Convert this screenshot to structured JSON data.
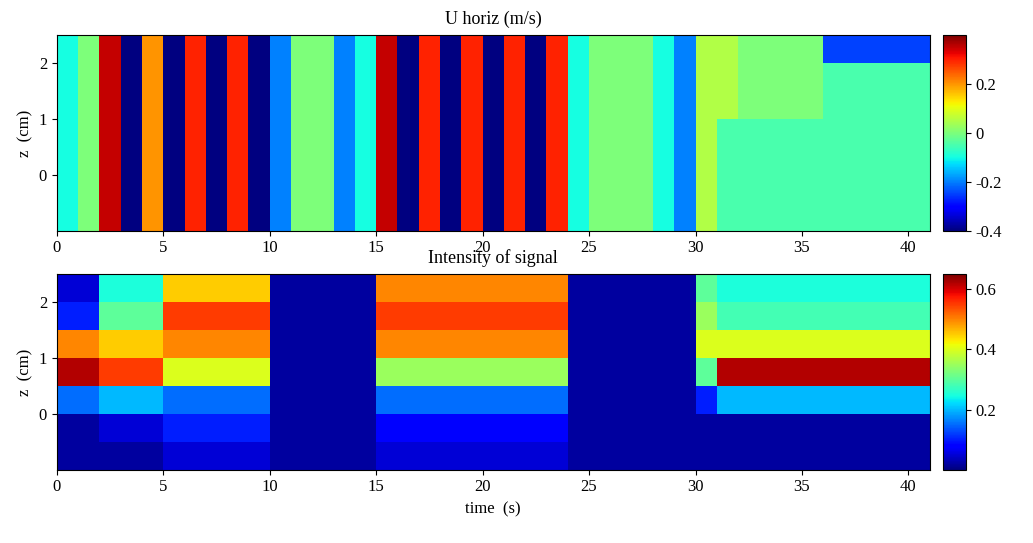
{
  "chart_data": [
    {
      "type": "heatmap",
      "title": "U horiz (m/s)",
      "ylabel": "z  (cm)",
      "xlim": [
        0,
        41
      ],
      "ylim": [
        -1,
        2.5
      ],
      "xticks": [
        0,
        5,
        10,
        15,
        20,
        25,
        30,
        35,
        40
      ],
      "yticks": [
        0,
        1,
        2
      ],
      "x_edges": [
        0,
        1,
        2,
        3,
        4,
        5,
        6,
        7,
        8,
        9,
        10,
        11,
        12,
        13,
        14,
        15,
        16,
        17,
        18,
        19,
        20,
        21,
        22,
        23,
        24,
        25,
        26,
        27,
        28,
        29,
        30,
        31,
        32,
        33,
        34,
        35,
        36,
        37,
        38,
        39,
        40,
        41
      ],
      "y_edges": [
        -1,
        -0.5,
        0,
        0.5,
        1,
        1.5,
        2,
        2.5
      ],
      "cells": [
        [
          -0.1,
          0.0,
          0.35,
          -0.4,
          0.2,
          -0.4,
          0.3,
          -0.4,
          0.3,
          -0.4,
          -0.2,
          0.0,
          0.0,
          -0.2,
          -0.1,
          0.35,
          -0.4,
          0.3,
          -0.4,
          0.3,
          -0.4,
          0.3,
          -0.4,
          0.3,
          -0.1,
          0.0,
          0.0,
          0.0,
          -0.1,
          -0.2,
          0.05,
          -0.05,
          -0.05,
          -0.05,
          -0.05,
          -0.05,
          -0.05,
          -0.05,
          -0.05,
          -0.05,
          -0.05
        ],
        [
          -0.1,
          0.0,
          0.35,
          -0.4,
          0.2,
          -0.4,
          0.3,
          -0.4,
          0.3,
          -0.4,
          -0.2,
          0.0,
          0.0,
          -0.2,
          -0.1,
          0.35,
          -0.4,
          0.3,
          -0.4,
          0.3,
          -0.4,
          0.3,
          -0.4,
          0.3,
          -0.1,
          0.0,
          0.0,
          0.0,
          -0.1,
          -0.2,
          0.05,
          -0.05,
          -0.05,
          -0.05,
          -0.05,
          -0.05,
          -0.05,
          -0.05,
          -0.05,
          -0.05,
          -0.05
        ],
        [
          -0.1,
          0.0,
          0.35,
          -0.4,
          0.2,
          -0.4,
          0.3,
          -0.4,
          0.3,
          -0.4,
          -0.2,
          0.0,
          0.0,
          -0.2,
          -0.1,
          0.35,
          -0.4,
          0.3,
          -0.4,
          0.3,
          -0.4,
          0.3,
          -0.4,
          0.3,
          -0.1,
          0.0,
          0.0,
          0.0,
          -0.1,
          -0.2,
          0.05,
          -0.05,
          -0.05,
          -0.05,
          -0.05,
          -0.05,
          -0.05,
          -0.05,
          -0.05,
          -0.05,
          -0.05
        ],
        [
          -0.1,
          0.0,
          0.35,
          -0.4,
          0.2,
          -0.4,
          0.3,
          -0.4,
          0.3,
          -0.4,
          -0.2,
          0.0,
          0.0,
          -0.2,
          -0.1,
          0.35,
          -0.4,
          0.3,
          -0.4,
          0.3,
          -0.4,
          0.3,
          -0.4,
          0.3,
          -0.1,
          0.0,
          0.0,
          0.0,
          -0.1,
          -0.2,
          0.05,
          -0.05,
          -0.05,
          -0.05,
          -0.05,
          -0.05,
          -0.05,
          -0.05,
          -0.05,
          -0.05,
          -0.05
        ],
        [
          -0.1,
          0.0,
          0.35,
          -0.4,
          0.2,
          -0.4,
          0.3,
          -0.4,
          0.3,
          -0.4,
          -0.2,
          0.0,
          0.0,
          -0.2,
          -0.1,
          0.35,
          -0.4,
          0.3,
          -0.4,
          0.3,
          -0.4,
          0.3,
          -0.4,
          0.3,
          -0.1,
          0.0,
          0.0,
          0.0,
          -0.1,
          -0.2,
          0.05,
          0.05,
          0.0,
          0.0,
          0.0,
          0.0,
          -0.05,
          -0.05,
          -0.05,
          -0.05,
          -0.05
        ],
        [
          -0.1,
          0.0,
          0.35,
          -0.4,
          0.2,
          -0.4,
          0.3,
          -0.4,
          0.3,
          -0.4,
          -0.2,
          0.0,
          0.0,
          -0.2,
          -0.1,
          0.35,
          -0.4,
          0.3,
          -0.4,
          0.3,
          -0.4,
          0.3,
          -0.4,
          0.3,
          -0.1,
          0.0,
          0.0,
          0.0,
          -0.1,
          -0.2,
          0.05,
          0.05,
          0.0,
          0.0,
          0.0,
          0.0,
          -0.05,
          -0.05,
          -0.05,
          -0.05,
          -0.05
        ],
        [
          -0.1,
          0.0,
          0.35,
          -0.4,
          0.2,
          -0.4,
          0.3,
          -0.4,
          0.3,
          -0.4,
          -0.2,
          0.0,
          0.0,
          -0.2,
          -0.1,
          0.35,
          -0.4,
          0.3,
          -0.4,
          0.3,
          -0.4,
          0.3,
          -0.4,
          0.3,
          -0.1,
          0.0,
          0.0,
          0.0,
          -0.1,
          -0.2,
          0.05,
          0.05,
          0.0,
          0.0,
          0.0,
          0.0,
          -0.25,
          -0.25,
          -0.25,
          -0.25,
          -0.25
        ]
      ],
      "colorbar_range": [
        -0.4,
        0.4
      ],
      "colorbar_ticks": [
        -0.4,
        -0.2,
        0,
        0.2
      ]
    },
    {
      "type": "heatmap",
      "title": "Intensity of signal",
      "xlabel": "time  (s)",
      "ylabel": "z  (cm)",
      "xlim": [
        0,
        41
      ],
      "ylim": [
        -1,
        2.5
      ],
      "xticks": [
        0,
        5,
        10,
        15,
        20,
        25,
        30,
        35,
        40
      ],
      "yticks": [
        0,
        1,
        2
      ],
      "x_edges": [
        0,
        1,
        2,
        3,
        4,
        5,
        6,
        7,
        8,
        9,
        10,
        11,
        12,
        13,
        14,
        15,
        16,
        17,
        18,
        19,
        20,
        21,
        22,
        23,
        24,
        25,
        26,
        27,
        28,
        29,
        30,
        31,
        32,
        33,
        34,
        35,
        36,
        37,
        38,
        39,
        40,
        41
      ],
      "y_edges": [
        -1,
        -0.5,
        0,
        0.5,
        1,
        1.5,
        2,
        2.5
      ],
      "cells": [
        [
          0.02,
          0.02,
          0.02,
          0.02,
          0.02,
          0.05,
          0.05,
          0.05,
          0.05,
          0.05,
          0.02,
          0.02,
          0.02,
          0.02,
          0.02,
          0.05,
          0.05,
          0.05,
          0.05,
          0.05,
          0.05,
          0.05,
          0.05,
          0.05,
          0.02,
          0.02,
          0.02,
          0.02,
          0.02,
          0.02,
          0.02,
          0.02,
          0.02,
          0.02,
          0.02,
          0.02,
          0.02,
          0.02,
          0.02,
          0.02,
          0.02
        ],
        [
          0.02,
          0.02,
          0.05,
          0.05,
          0.05,
          0.1,
          0.1,
          0.1,
          0.1,
          0.1,
          0.02,
          0.02,
          0.02,
          0.02,
          0.02,
          0.08,
          0.08,
          0.08,
          0.08,
          0.08,
          0.08,
          0.08,
          0.08,
          0.08,
          0.02,
          0.02,
          0.02,
          0.02,
          0.02,
          0.02,
          0.02,
          0.02,
          0.02,
          0.02,
          0.02,
          0.02,
          0.02,
          0.02,
          0.02,
          0.02,
          0.02
        ],
        [
          0.15,
          0.15,
          0.2,
          0.2,
          0.2,
          0.15,
          0.15,
          0.15,
          0.15,
          0.15,
          0.02,
          0.02,
          0.02,
          0.02,
          0.02,
          0.15,
          0.15,
          0.15,
          0.15,
          0.15,
          0.15,
          0.15,
          0.15,
          0.15,
          0.02,
          0.02,
          0.02,
          0.02,
          0.02,
          0.02,
          0.1,
          0.2,
          0.2,
          0.2,
          0.2,
          0.2,
          0.2,
          0.2,
          0.2,
          0.2,
          0.2
        ],
        [
          0.62,
          0.62,
          0.55,
          0.55,
          0.55,
          0.4,
          0.4,
          0.4,
          0.4,
          0.4,
          0.02,
          0.02,
          0.02,
          0.02,
          0.02,
          0.35,
          0.35,
          0.35,
          0.35,
          0.35,
          0.35,
          0.35,
          0.35,
          0.35,
          0.02,
          0.02,
          0.02,
          0.02,
          0.02,
          0.02,
          0.3,
          0.62,
          0.62,
          0.62,
          0.62,
          0.62,
          0.62,
          0.62,
          0.62,
          0.62,
          0.62
        ],
        [
          0.5,
          0.5,
          0.45,
          0.45,
          0.45,
          0.5,
          0.5,
          0.5,
          0.5,
          0.5,
          0.02,
          0.02,
          0.02,
          0.02,
          0.02,
          0.5,
          0.5,
          0.5,
          0.5,
          0.5,
          0.5,
          0.5,
          0.5,
          0.5,
          0.02,
          0.02,
          0.02,
          0.02,
          0.02,
          0.02,
          0.4,
          0.4,
          0.4,
          0.4,
          0.4,
          0.4,
          0.4,
          0.4,
          0.4,
          0.4,
          0.4
        ],
        [
          0.1,
          0.1,
          0.3,
          0.3,
          0.3,
          0.55,
          0.55,
          0.55,
          0.55,
          0.55,
          0.02,
          0.02,
          0.02,
          0.02,
          0.02,
          0.55,
          0.55,
          0.55,
          0.55,
          0.55,
          0.55,
          0.55,
          0.55,
          0.55,
          0.02,
          0.02,
          0.02,
          0.02,
          0.02,
          0.02,
          0.35,
          0.28,
          0.28,
          0.28,
          0.28,
          0.28,
          0.28,
          0.28,
          0.28,
          0.28,
          0.28
        ],
        [
          0.05,
          0.05,
          0.25,
          0.25,
          0.25,
          0.45,
          0.45,
          0.45,
          0.45,
          0.45,
          0.02,
          0.02,
          0.02,
          0.02,
          0.02,
          0.5,
          0.5,
          0.5,
          0.5,
          0.5,
          0.5,
          0.5,
          0.5,
          0.5,
          0.02,
          0.02,
          0.02,
          0.02,
          0.02,
          0.02,
          0.3,
          0.25,
          0.25,
          0.25,
          0.25,
          0.25,
          0.25,
          0.25,
          0.25,
          0.25,
          0.25
        ]
      ],
      "colorbar_range": [
        0,
        0.65
      ],
      "colorbar_ticks": [
        0.2,
        0.4,
        0.6
      ]
    }
  ]
}
